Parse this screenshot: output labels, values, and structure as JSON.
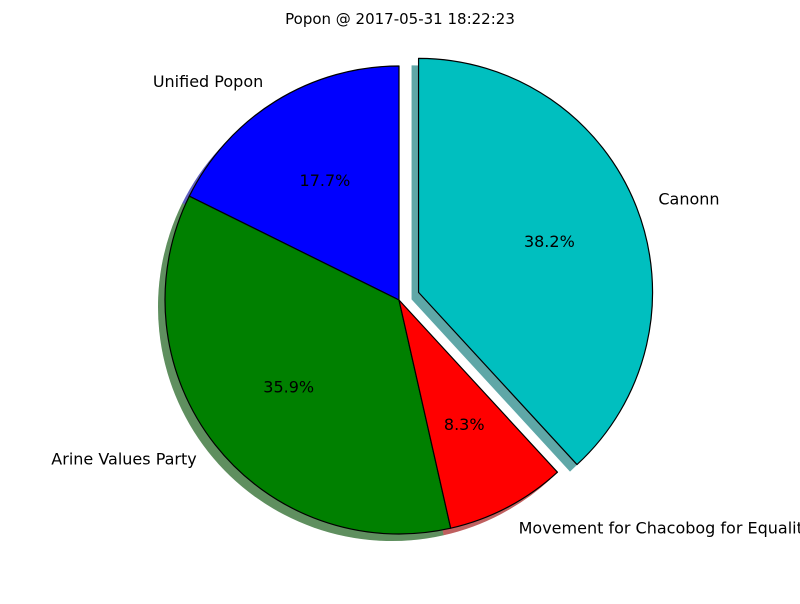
{
  "chart_data": {
    "type": "pie",
    "title": "Popon @ 2017-05-31 18:22:23",
    "start_angle_deg": 90,
    "direction": "counterclockwise",
    "shadow": true,
    "slices": [
      {
        "label": "Unified Popon",
        "value": 17.7,
        "pct_label": "17.7%",
        "color": "#0000ff",
        "exploded": false
      },
      {
        "label": "Arine Values Party",
        "value": 35.9,
        "pct_label": "35.9%",
        "color": "#008000",
        "exploded": false
      },
      {
        "label": "Movement for Chacobog for Equality",
        "value": 8.3,
        "pct_label": "8.3%",
        "color": "#ff0000",
        "exploded": false
      },
      {
        "label": "Canonn",
        "value": 38.2,
        "pct_label": "38.2%",
        "color": "#00bfbf",
        "exploded": true
      }
    ]
  }
}
